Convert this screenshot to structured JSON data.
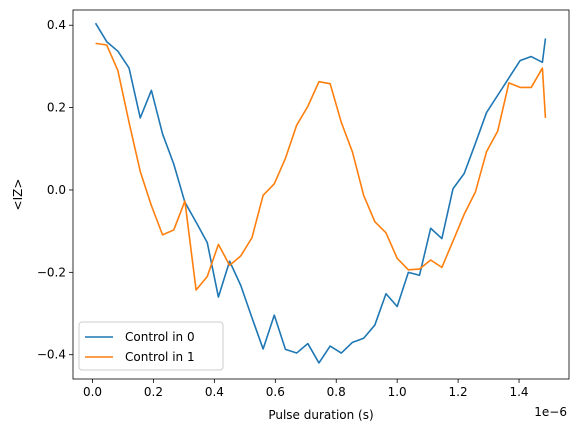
{
  "chart_data": {
    "type": "line",
    "xlabel": "Pulse duration (s)",
    "ylabel": "<IZ>",
    "x_offset_label": "1e−6",
    "x_multiplier": 1e-06,
    "xlim": [
      -0.064,
      1.564
    ],
    "ylim": [
      -0.459,
      0.437
    ],
    "xticks": [
      0.0,
      0.2,
      0.4,
      0.6,
      0.8,
      1.0,
      1.2,
      1.4
    ],
    "xtick_labels": [
      "0.0",
      "0.2",
      "0.4",
      "0.6",
      "0.8",
      "1.0",
      "1.2",
      "1.4"
    ],
    "yticks": [
      -0.4,
      -0.2,
      0.0,
      0.2,
      0.4
    ],
    "ytick_labels": [
      "−0.4",
      "−0.2",
      "0.0",
      "0.2",
      "0.4"
    ],
    "grid": false,
    "legend_position": "lower-left",
    "x": [
      0.01,
      0.0467,
      0.0833,
      0.12,
      0.1567,
      0.1933,
      0.23,
      0.2667,
      0.3033,
      0.34,
      0.3767,
      0.4133,
      0.45,
      0.4867,
      0.5233,
      0.56,
      0.5967,
      0.6333,
      0.67,
      0.7067,
      0.7433,
      0.78,
      0.8167,
      0.8533,
      0.89,
      0.9267,
      0.9633,
      1.0,
      1.0367,
      1.0733,
      1.11,
      1.1467,
      1.1833,
      1.22,
      1.2567,
      1.2933,
      1.33,
      1.3667,
      1.4033,
      1.44,
      1.4767,
      1.4867
    ],
    "series": [
      {
        "name": "Control in 0",
        "color": "#1f77b4",
        "values": [
          0.405,
          0.36,
          0.337,
          0.296,
          0.175,
          0.242,
          0.136,
          0.063,
          -0.03,
          -0.078,
          -0.128,
          -0.26,
          -0.173,
          -0.232,
          -0.31,
          -0.386,
          -0.304,
          -0.387,
          -0.396,
          -0.373,
          -0.42,
          -0.379,
          -0.396,
          -0.37,
          -0.36,
          -0.328,
          -0.252,
          -0.283,
          -0.2,
          -0.207,
          -0.093,
          -0.118,
          0.003,
          0.04,
          0.113,
          0.188,
          0.23,
          0.272,
          0.314,
          0.324,
          0.31,
          0.368
        ]
      },
      {
        "name": "Control in 1",
        "color": "#ff7f0e",
        "values": [
          0.356,
          0.352,
          0.29,
          0.164,
          0.045,
          -0.038,
          -0.109,
          -0.097,
          -0.027,
          -0.243,
          -0.21,
          -0.132,
          -0.183,
          -0.16,
          -0.116,
          -0.013,
          0.015,
          0.077,
          0.157,
          0.203,
          0.263,
          0.258,
          0.164,
          0.092,
          -0.013,
          -0.077,
          -0.104,
          -0.166,
          -0.194,
          -0.192,
          -0.17,
          -0.188,
          -0.124,
          -0.059,
          -0.005,
          0.093,
          0.143,
          0.26,
          0.249,
          0.249,
          0.296,
          0.175
        ]
      }
    ]
  }
}
